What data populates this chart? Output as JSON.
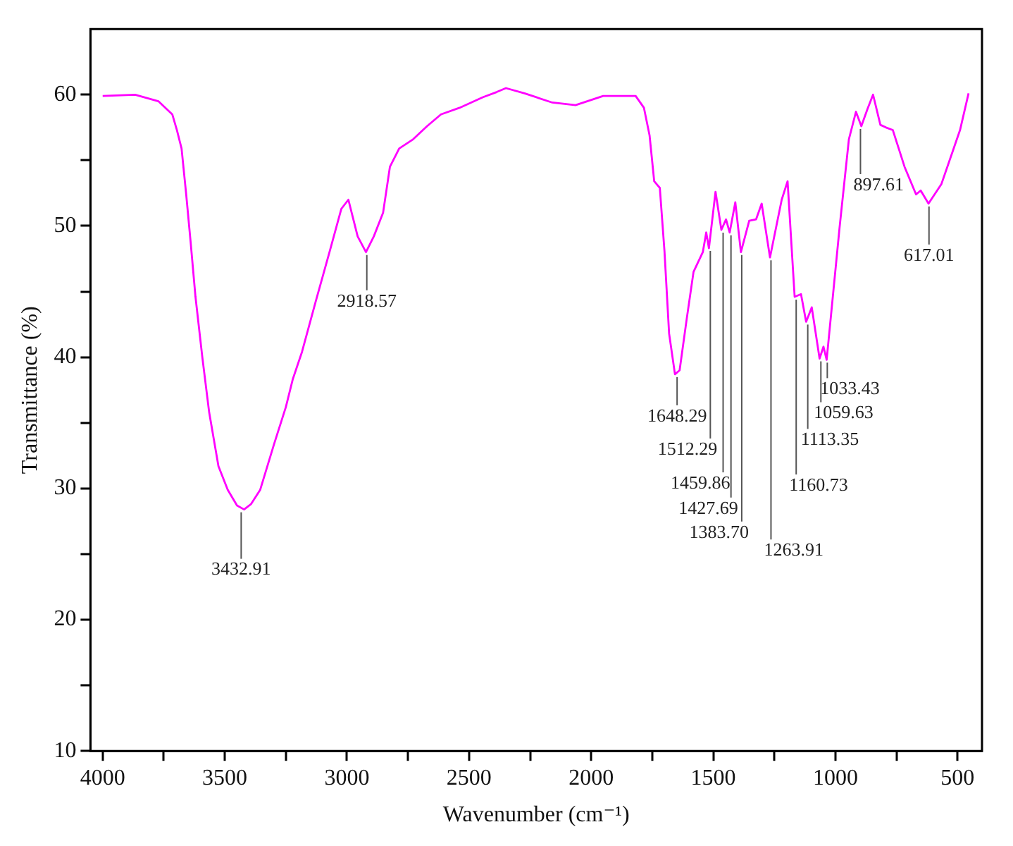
{
  "chart_data": {
    "type": "line",
    "xlabel": "Wavenumber (cm⁻¹)",
    "ylabel": "Transmittance (%)",
    "xlim": [
      4050,
      400
    ],
    "ylim": [
      10,
      65
    ],
    "xticks": [
      4000,
      {
        "value": 3750,
        "label": null
      },
      3500,
      {
        "value": 3250,
        "label": null
      },
      3000,
      {
        "value": 2750,
        "label": null
      },
      2500,
      {
        "value": 2250,
        "label": null
      },
      2000,
      {
        "value": 1750,
        "label": null
      },
      1500,
      {
        "value": 1250,
        "label": null
      },
      1000,
      {
        "value": 750,
        "label": null
      },
      500
    ],
    "yticks": [
      10,
      {
        "value": 15,
        "label": null
      },
      20,
      {
        "value": 25,
        "label": null
      },
      30,
      {
        "value": 35,
        "label": null
      },
      40,
      {
        "value": 45,
        "label": null
      },
      50,
      {
        "value": 55,
        "label": null
      },
      60
    ],
    "marker": "none",
    "line_style": "solid",
    "series": [
      {
        "color": "#ff00ff",
        "x": [
          4000,
          3867,
          3772,
          3715,
          3696,
          3677,
          3658,
          3640,
          3620,
          3592,
          3564,
          3526,
          3488,
          3450,
          3421,
          3393,
          3355,
          3298,
          3250,
          3222,
          3184,
          3127,
          3070,
          3023,
          2994,
          2975,
          2956,
          2922,
          2890,
          2852,
          2824,
          2786,
          2729,
          2672,
          2615,
          2539,
          2444,
          2387,
          2349,
          2273,
          2159,
          2064,
          1951,
          1818,
          1784,
          1761,
          1742,
          1719,
          1700,
          1681,
          1657,
          1638,
          1609,
          1581,
          1543,
          1529,
          1518,
          1491,
          1467,
          1448,
          1433,
          1410,
          1387,
          1353,
          1325,
          1302,
          1268,
          1220,
          1196,
          1167,
          1141,
          1120,
          1097,
          1065,
          1049,
          1036,
          983,
          945,
          916,
          894,
          869,
          846,
          816,
          793,
          765,
          717,
          670,
          651,
          619,
          566,
          490,
          455
        ],
        "values": [
          59.9,
          60,
          59.5,
          58.5,
          57.3,
          55.9,
          52.4,
          48.8,
          44.6,
          40,
          35.8,
          31.7,
          29.9,
          28.7,
          28.4,
          28.8,
          29.9,
          33.4,
          36.2,
          38.3,
          40.4,
          44.3,
          48.1,
          51.3,
          52,
          50.6,
          49.2,
          48,
          49.2,
          51,
          54.5,
          55.9,
          56.6,
          57.6,
          58.5,
          59,
          59.8,
          60.2,
          60.5,
          60.1,
          59.4,
          59.2,
          59.9,
          59.9,
          59,
          56.9,
          53.4,
          52.9,
          48.1,
          41.8,
          38.7,
          39,
          42.9,
          46.5,
          48,
          49.5,
          48.3,
          52.6,
          49.7,
          50.5,
          49.5,
          51.8,
          48,
          50.4,
          50.5,
          51.7,
          47.6,
          52,
          53.4,
          44.6,
          44.8,
          42.7,
          43.8,
          39.9,
          40.8,
          39.8,
          49.9,
          56.6,
          58.7,
          57.6,
          58.9,
          60,
          57.7,
          57.5,
          57.3,
          54.5,
          52.4,
          52.7,
          51.7,
          53.2,
          57.3,
          60.1
        ]
      }
    ],
    "annotations": [
      {
        "text": "3432.91",
        "x": 3432.91,
        "y": 28.4
      },
      {
        "text": "2918.57",
        "x": 2918.57,
        "y": 48
      },
      {
        "text": "1648.29",
        "x": 1648.29,
        "y": 38.7
      },
      {
        "text": "1512.29",
        "x": 1512.29,
        "y": 48.3
      },
      {
        "text": "1459.86",
        "x": 1459.86,
        "y": 49.7
      },
      {
        "text": "1427.69",
        "x": 1427.69,
        "y": 49.5
      },
      {
        "text": "1383.70",
        "x": 1383.7,
        "y": 48
      },
      {
        "text": "1263.91",
        "x": 1263.91,
        "y": 47.6
      },
      {
        "text": "1160.73",
        "x": 1160.73,
        "y": 44.6
      },
      {
        "text": "1113.35",
        "x": 1113.35,
        "y": 42.7
      },
      {
        "text": "1059.63",
        "x": 1059.63,
        "y": 39.9
      },
      {
        "text": "1033.43",
        "x": 1033.43,
        "y": 39.8
      },
      {
        "text": "897.61",
        "x": 897.61,
        "y": 57.6
      },
      {
        "text": "617.01",
        "x": 617.01,
        "y": 51.7
      }
    ]
  }
}
